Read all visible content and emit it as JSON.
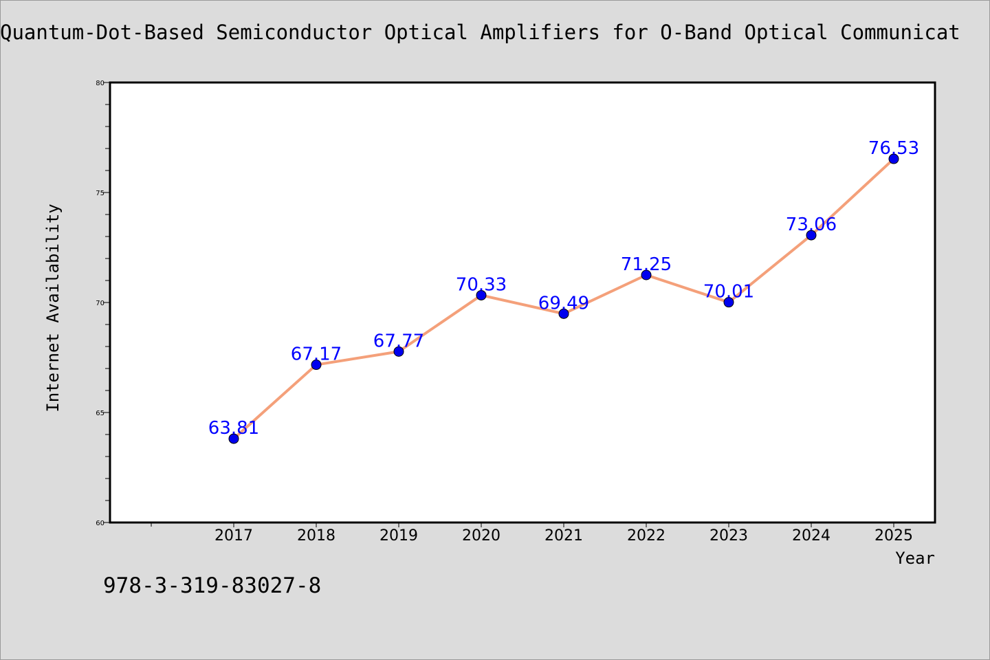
{
  "chart_data": {
    "type": "line",
    "title": "Quantum-Dot-Based Semiconductor Optical Amplifiers for O-Band Optical Communicat",
    "xlabel": "Year",
    "ylabel": "Internet Availability",
    "x": [
      "2017",
      "2018",
      "2019",
      "2020",
      "2021",
      "2022",
      "2023",
      "2024",
      "2025"
    ],
    "series": [
      {
        "values": [
          63.81,
          67.17,
          67.77,
          70.33,
          69.49,
          71.25,
          70.01,
          73.06,
          76.53
        ],
        "data_labels": [
          "63.81",
          "67.17",
          "67.77",
          "70.33",
          "69.49",
          "71.25",
          "70.01",
          "73.06",
          "76.53"
        ],
        "line_color": "#f4a07a",
        "marker_color": "#0000ee",
        "label_color": "#0000ff"
      }
    ],
    "ylim": [
      60,
      80
    ],
    "yticks": [
      "60",
      "65",
      "70",
      "75",
      "80"
    ],
    "grid": false,
    "legend": "none"
  },
  "footer": {
    "isbn": "978-3-319-83027-8"
  },
  "colors": {
    "background": "#dcdcdc",
    "plot_background": "#ffffff"
  }
}
